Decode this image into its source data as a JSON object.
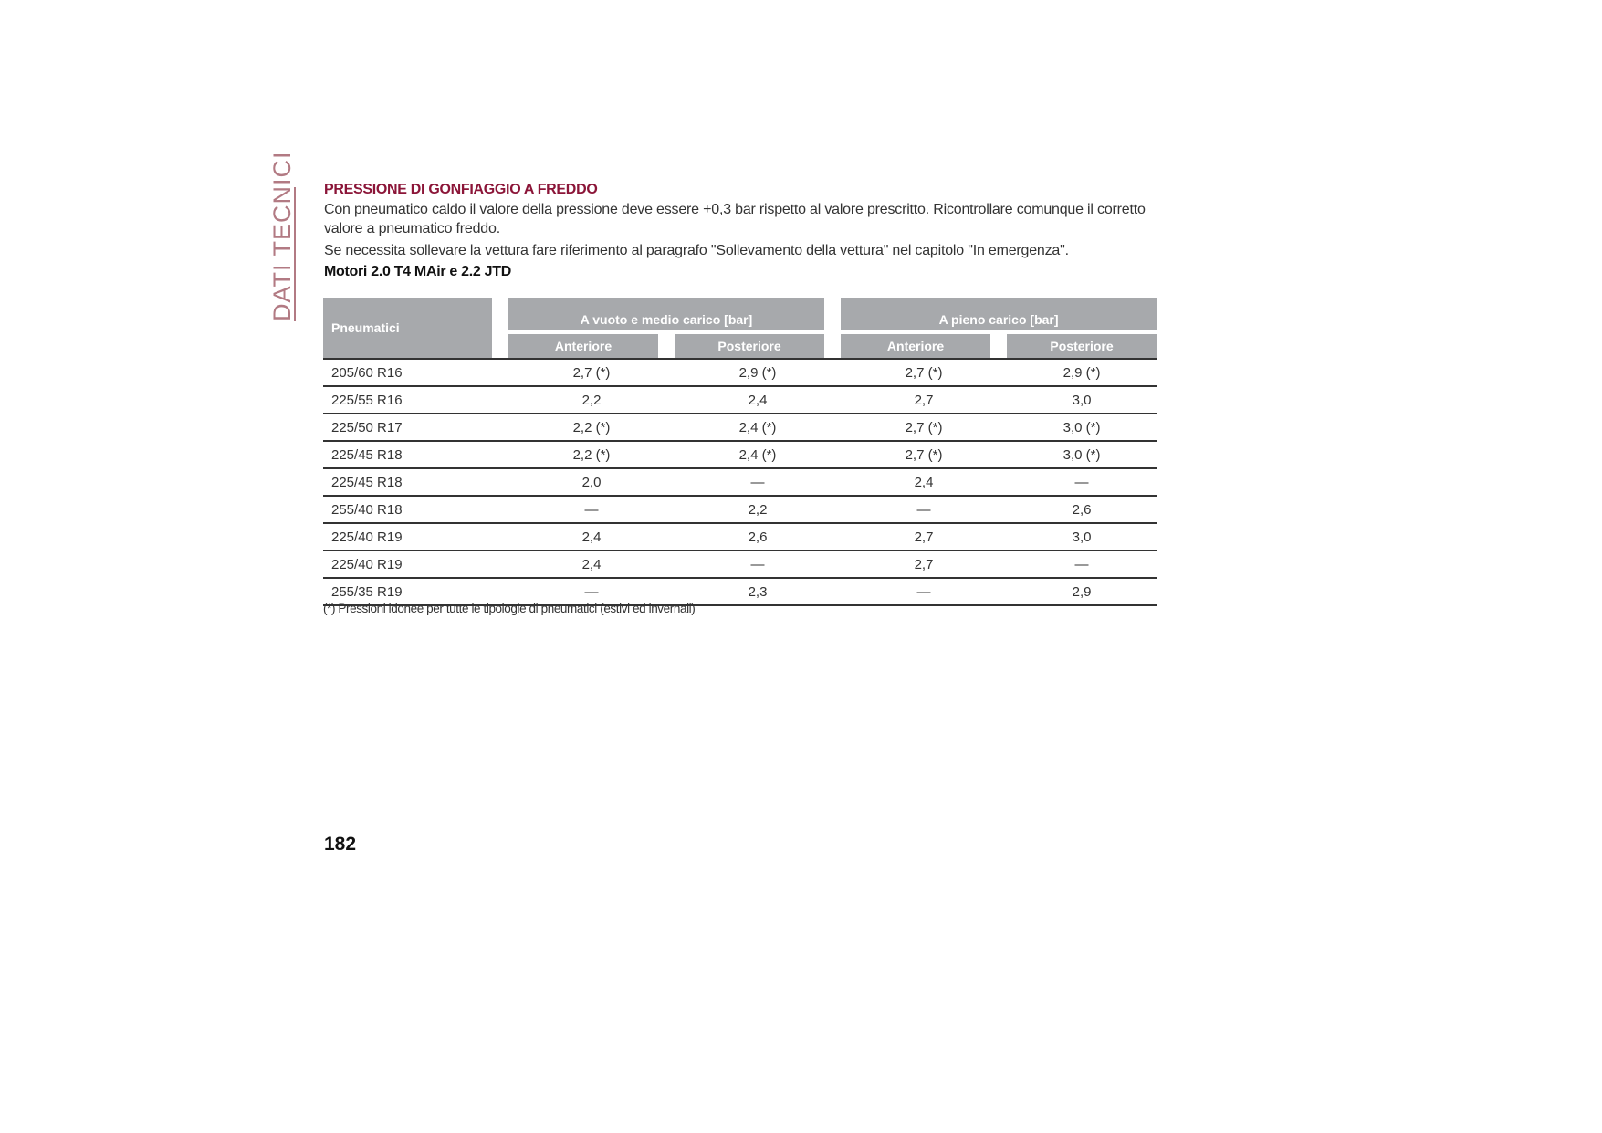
{
  "sidebar": {
    "section": "DATI TECNICI"
  },
  "title": "PRESSIONE DI GONFIAGGIO A FREDDO",
  "paragraphs": [
    "Con pneumatico caldo il valore della pressione deve essere +0,3 bar rispetto al valore prescritto. Ricontrollare comunque il corretto valore a pneumatico freddo.",
    "Se necessita sollevare la vettura fare riferimento al paragrafo \"Sollevamento della vettura\" nel capitolo \"In emergenza\"."
  ],
  "subtitle": "Motori 2.0 T4 MAir e 2.2 JTD",
  "table": {
    "col_tyres": "Pneumatici",
    "group1": "A vuoto e medio carico [bar]",
    "group2": "A pieno carico [bar]",
    "front": "Anteriore",
    "rear": "Posteriore",
    "rows": [
      [
        "205/60 R16",
        "2,7 (*)",
        "2,9 (*)",
        "2,7 (*)",
        "2,9 (*)"
      ],
      [
        "225/55 R16",
        "2,2",
        "2,4",
        "2,7",
        "3,0"
      ],
      [
        "225/50 R17",
        "2,2 (*)",
        "2,4 (*)",
        "2,7 (*)",
        "3,0 (*)"
      ],
      [
        "225/45 R18",
        "2,2 (*)",
        "2,4 (*)",
        "2,7 (*)",
        "3,0 (*)"
      ],
      [
        "225/45 R18",
        "2,0",
        "—",
        "2,4",
        "—"
      ],
      [
        "255/40 R18",
        "—",
        "2,2",
        "—",
        "2,6"
      ],
      [
        "225/40 R19",
        "2,4",
        "2,6",
        "2,7",
        "3,0"
      ],
      [
        "225/40 R19",
        "2,4",
        "—",
        "2,7",
        "—"
      ],
      [
        "255/35 R19",
        "—",
        "2,3",
        "—",
        "2,9"
      ]
    ]
  },
  "footnote": "(*) Pressioni idonee per tutte le tipologie di pneumatici (estivi ed invernali)",
  "page_number": "182",
  "colors": {
    "accent": "#8b1538",
    "header_gray": "#a7a9ac",
    "side_label": "#b27a83"
  }
}
